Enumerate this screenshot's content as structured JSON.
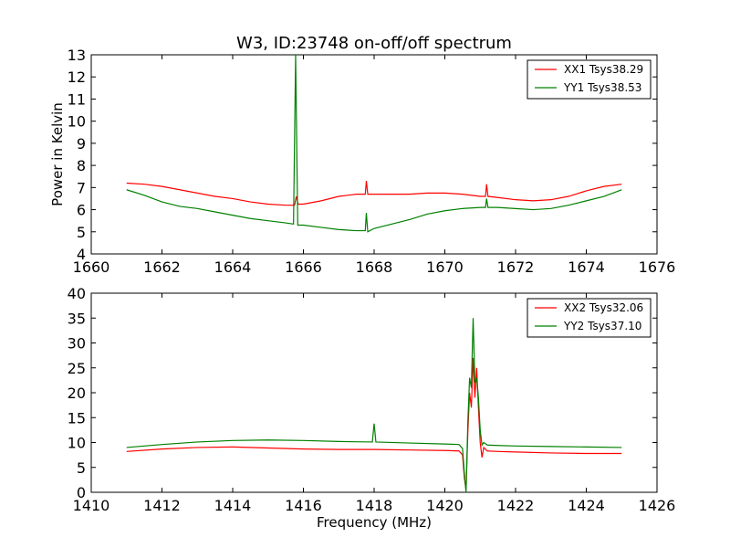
{
  "chart_data": [
    {
      "type": "line",
      "title": "W3, ID:23748 on-off/off spectrum",
      "xlabel": "",
      "ylabel": "Power in Kelvin",
      "xlim": [
        1660,
        1676
      ],
      "ylim": [
        4,
        13
      ],
      "x_ticks": [
        1660,
        1662,
        1664,
        1666,
        1668,
        1670,
        1672,
        1674,
        1676
      ],
      "y_ticks": [
        4,
        5,
        6,
        7,
        8,
        9,
        10,
        11,
        12,
        13
      ],
      "legend_position": "top-right",
      "series": [
        {
          "name": "XX1 Tsys38.29",
          "color": "#ff0000",
          "x": [
            1661.0,
            1661.5,
            1662.0,
            1662.5,
            1663.0,
            1663.5,
            1664.0,
            1664.5,
            1665.0,
            1665.5,
            1665.75,
            1665.8,
            1665.85,
            1666.0,
            1666.5,
            1667.0,
            1667.5,
            1667.75,
            1667.78,
            1667.82,
            1668.0,
            1668.5,
            1669.0,
            1669.5,
            1670.0,
            1670.5,
            1671.0,
            1671.15,
            1671.18,
            1671.22,
            1671.5,
            1672.0,
            1672.5,
            1673.0,
            1673.5,
            1674.0,
            1674.5,
            1675.0
          ],
          "y": [
            7.2,
            7.15,
            7.05,
            6.9,
            6.75,
            6.6,
            6.5,
            6.35,
            6.25,
            6.2,
            6.2,
            6.6,
            6.25,
            6.25,
            6.4,
            6.6,
            6.7,
            6.7,
            7.3,
            6.7,
            6.7,
            6.7,
            6.7,
            6.75,
            6.75,
            6.7,
            6.6,
            6.6,
            7.15,
            6.6,
            6.55,
            6.45,
            6.4,
            6.45,
            6.6,
            6.85,
            7.05,
            7.15
          ]
        },
        {
          "name": "YY1 Tsys38.53",
          "color": "#008000",
          "x": [
            1661.0,
            1661.5,
            1662.0,
            1662.5,
            1663.0,
            1663.5,
            1664.0,
            1664.5,
            1665.0,
            1665.5,
            1665.72,
            1665.78,
            1665.84,
            1666.0,
            1666.5,
            1667.0,
            1667.5,
            1667.75,
            1667.78,
            1667.82,
            1668.0,
            1668.5,
            1669.0,
            1669.5,
            1670.0,
            1670.5,
            1671.0,
            1671.15,
            1671.18,
            1671.22,
            1671.5,
            1672.0,
            1672.5,
            1673.0,
            1673.5,
            1674.0,
            1674.5,
            1675.0
          ],
          "y": [
            6.9,
            6.65,
            6.35,
            6.15,
            6.05,
            5.9,
            5.75,
            5.6,
            5.5,
            5.4,
            5.35,
            13.0,
            5.3,
            5.3,
            5.2,
            5.1,
            5.05,
            5.05,
            5.85,
            5.0,
            5.15,
            5.35,
            5.55,
            5.8,
            5.95,
            6.05,
            6.1,
            6.1,
            6.5,
            6.1,
            6.1,
            6.05,
            6.0,
            6.05,
            6.2,
            6.4,
            6.6,
            6.9
          ]
        }
      ]
    },
    {
      "type": "line",
      "title": "",
      "xlabel": "Frequency (MHz)",
      "ylabel": "",
      "xlim": [
        1410,
        1426
      ],
      "ylim": [
        0,
        40
      ],
      "x_ticks": [
        1410,
        1412,
        1414,
        1416,
        1418,
        1420,
        1422,
        1424,
        1426
      ],
      "y_ticks": [
        0,
        5,
        10,
        15,
        20,
        25,
        30,
        35,
        40
      ],
      "legend_position": "top-right",
      "series": [
        {
          "name": "XX2 Tsys32.06",
          "color": "#ff0000",
          "x": [
            1411.0,
            1412.0,
            1413.0,
            1414.0,
            1415.0,
            1416.0,
            1417.0,
            1418.0,
            1419.0,
            1420.0,
            1420.4,
            1420.5,
            1420.55,
            1420.6,
            1420.65,
            1420.7,
            1420.75,
            1420.8,
            1420.85,
            1420.9,
            1420.95,
            1421.0,
            1421.05,
            1421.1,
            1421.2,
            1421.5,
            1422.0,
            1423.0,
            1424.0,
            1425.0
          ],
          "y": [
            8.2,
            8.7,
            9.0,
            9.1,
            8.9,
            8.7,
            8.6,
            8.6,
            8.5,
            8.4,
            8.3,
            7.5,
            3.0,
            0.5,
            12.0,
            20.0,
            17.0,
            27.0,
            19.0,
            25.0,
            17.0,
            10.0,
            7.0,
            9.0,
            8.3,
            8.2,
            8.1,
            7.9,
            7.8,
            7.8
          ]
        },
        {
          "name": "YY2 Tsys37.10",
          "color": "#008000",
          "x": [
            1411.0,
            1412.0,
            1413.0,
            1414.0,
            1415.0,
            1416.0,
            1417.0,
            1417.95,
            1418.0,
            1418.05,
            1419.0,
            1420.0,
            1420.4,
            1420.5,
            1420.55,
            1420.6,
            1420.65,
            1420.7,
            1420.75,
            1420.8,
            1420.85,
            1420.9,
            1420.95,
            1421.0,
            1421.05,
            1421.1,
            1421.2,
            1421.5,
            1422.0,
            1423.0,
            1424.0,
            1425.0
          ],
          "y": [
            9.0,
            9.6,
            10.1,
            10.4,
            10.5,
            10.4,
            10.2,
            10.1,
            13.8,
            10.1,
            9.9,
            9.7,
            9.6,
            8.8,
            4.0,
            0.0,
            14.0,
            23.0,
            21.0,
            35.0,
            22.0,
            23.0,
            19.0,
            12.5,
            9.5,
            10.0,
            9.5,
            9.4,
            9.3,
            9.2,
            9.1,
            9.0
          ]
        }
      ]
    }
  ]
}
